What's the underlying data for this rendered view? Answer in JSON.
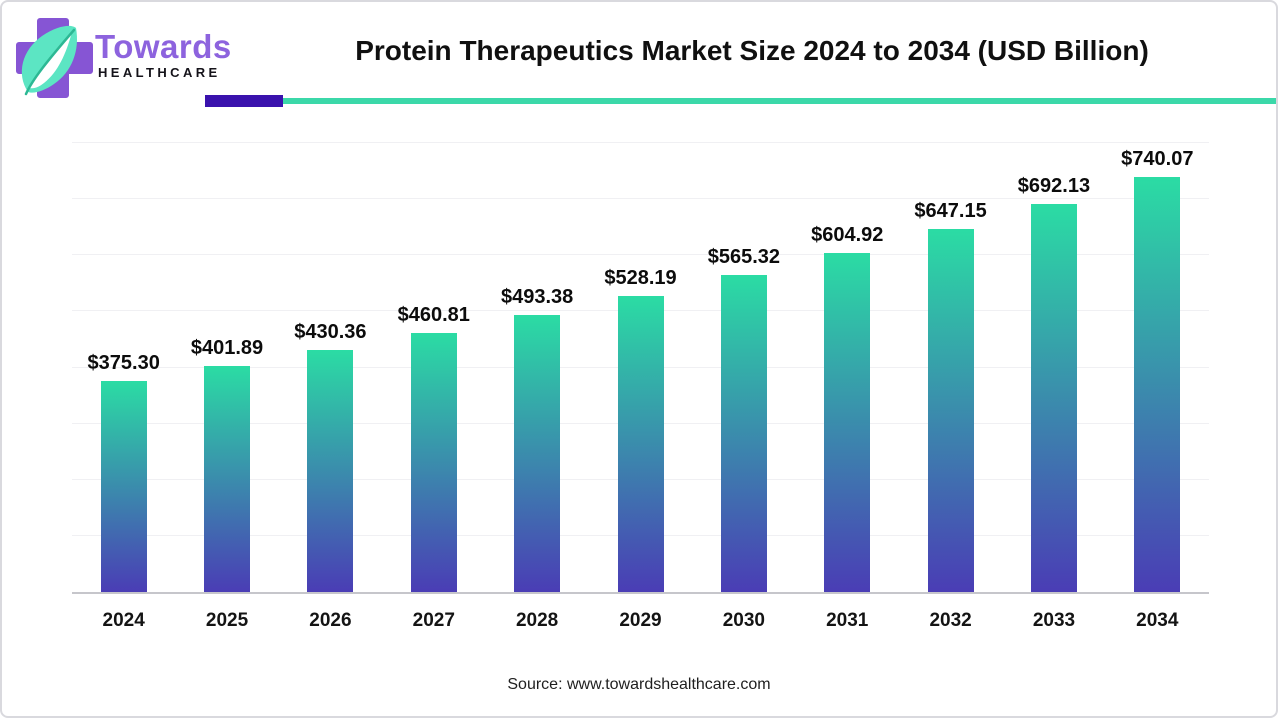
{
  "logo": {
    "name": "Towards",
    "subname": "HEALTHCARE"
  },
  "header": {
    "title": "Protein Therapeutics Market Size 2024 to 2034 (USD Billion)"
  },
  "footer": {
    "source": "Source: www.towardshealthcare.com"
  },
  "colors": {
    "accent_teal": "#3bd8a9",
    "accent_purple": "#3a12ad",
    "bar_gradient_top": "#2bdca4",
    "bar_gradient_bottom": "#4a3db5",
    "logo_text_purple": "#8d63de",
    "logo_cross_purple": "#8655d4",
    "logo_leaf_mint": "#5ce5c3",
    "gridline": "#f0f0f3",
    "axis_line": "#c6c6cb"
  },
  "chart_data": {
    "type": "bar",
    "title": "Protein Therapeutics Market Size 2024 to 2034 (USD Billion)",
    "categories": [
      "2024",
      "2025",
      "2026",
      "2027",
      "2028",
      "2029",
      "2030",
      "2031",
      "2032",
      "2033",
      "2034"
    ],
    "values": [
      375.3,
      401.89,
      430.36,
      460.81,
      493.38,
      528.19,
      565.32,
      604.92,
      647.15,
      692.13,
      740.07
    ],
    "labels": [
      "$375.30",
      "$401.89",
      "$430.36",
      "$460.81",
      "$493.38",
      "$528.19",
      "$565.32",
      "$604.92",
      "$647.15",
      "$692.13",
      "$740.07"
    ],
    "xlabel": "",
    "ylabel": "",
    "ylim": [
      0,
      800
    ],
    "gridline_step": 100,
    "grid": "horizontal",
    "legend": "none",
    "bar_gradient": [
      "#2bdca4",
      "#4a3db5"
    ]
  }
}
